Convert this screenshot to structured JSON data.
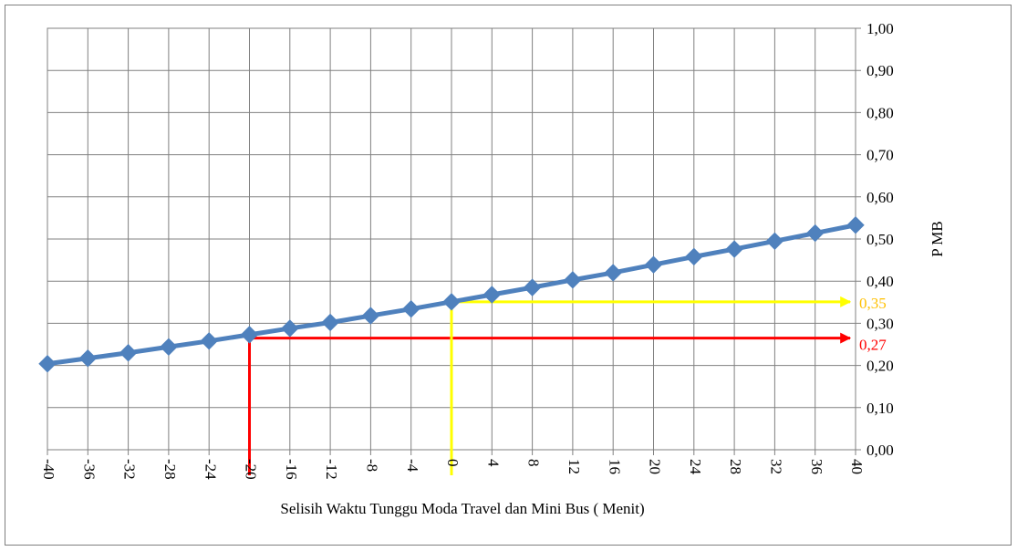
{
  "chart_data": {
    "type": "line",
    "title": "",
    "xlabel": "Selisih  Waktu Tunggu Moda Travel dan Mini Bus  ( Menit)",
    "ylabel": "P MB",
    "x": [
      -40,
      -36,
      -32,
      -28,
      -24,
      -20,
      -16,
      -12,
      -8,
      -4,
      0,
      4,
      8,
      12,
      16,
      20,
      24,
      28,
      32,
      36,
      40
    ],
    "x_tick_labels": [
      "-40",
      "-36",
      "-32",
      "-28",
      "-24",
      "-20",
      "-16",
      "-12",
      "-8",
      "-4",
      "0",
      "4",
      "8",
      "12",
      "16",
      "20",
      "24",
      "28",
      "32",
      "36",
      "40"
    ],
    "y_tick_labels": [
      "0,00",
      "0,10",
      "0,20",
      "0,30",
      "0,40",
      "0,50",
      "0,60",
      "0,70",
      "0,80",
      "0,90",
      "1,00"
    ],
    "xlim": [
      -40,
      40
    ],
    "ylim": [
      0,
      1
    ],
    "grid": true,
    "y_axis_side": "right",
    "series": [
      {
        "color": "#4F81BD",
        "marker": "diamond",
        "values": [
          0.204,
          0.217,
          0.23,
          0.244,
          0.258,
          0.273,
          0.288,
          0.302,
          0.318,
          0.334,
          0.351,
          0.368,
          0.385,
          0.403,
          0.42,
          0.439,
          0.458,
          0.476,
          0.495,
          0.514,
          0.533
        ]
      }
    ],
    "annotations": [
      {
        "label": "0,27",
        "x": -20,
        "y": 0.265,
        "color": "#FF0000"
      },
      {
        "label": "0,35",
        "x": 0,
        "y": 0.351,
        "color": "#FFFF00",
        "label_color": "#FFC000"
      }
    ]
  }
}
